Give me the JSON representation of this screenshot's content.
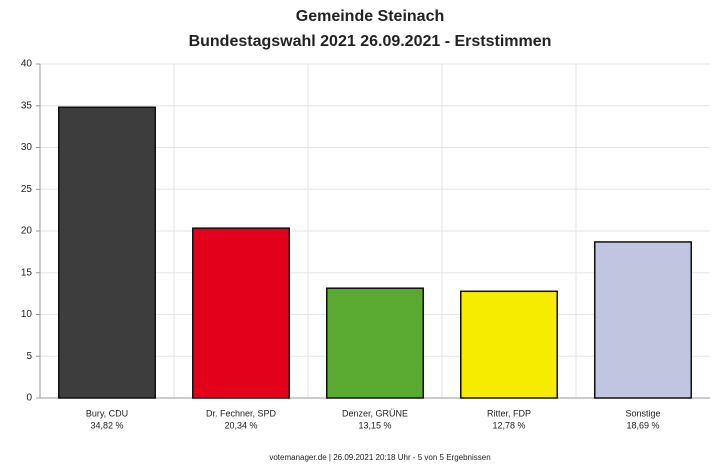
{
  "chart_data": {
    "type": "bar",
    "title": "Gemeinde Steinach",
    "subtitle": "Bundestagswahl 2021 26.09.2021  - Erststimmen",
    "categories": [
      "Bury, CDU",
      "Dr. Fechner, SPD",
      "Denzer, GRÜNE",
      "Ritter, FDP",
      "Sonstige"
    ],
    "values": [
      34.82,
      20.34,
      13.15,
      12.78,
      18.69
    ],
    "value_labels": [
      "34,82 %",
      "20,34 %",
      "13,15 %",
      "12,78 %",
      "18,69 %"
    ],
    "colors": [
      "#3d3d3d",
      "#e3001b",
      "#5aaa32",
      "#f5ec00",
      "#c0c6e0"
    ],
    "ylim": [
      0,
      40
    ],
    "yticks": [
      0,
      5,
      10,
      15,
      20,
      25,
      30,
      35,
      40
    ],
    "grid": true,
    "footer": "votemanager.de | 26.09.2021 20:18 Uhr - 5 von 5 Ergebnissen"
  }
}
